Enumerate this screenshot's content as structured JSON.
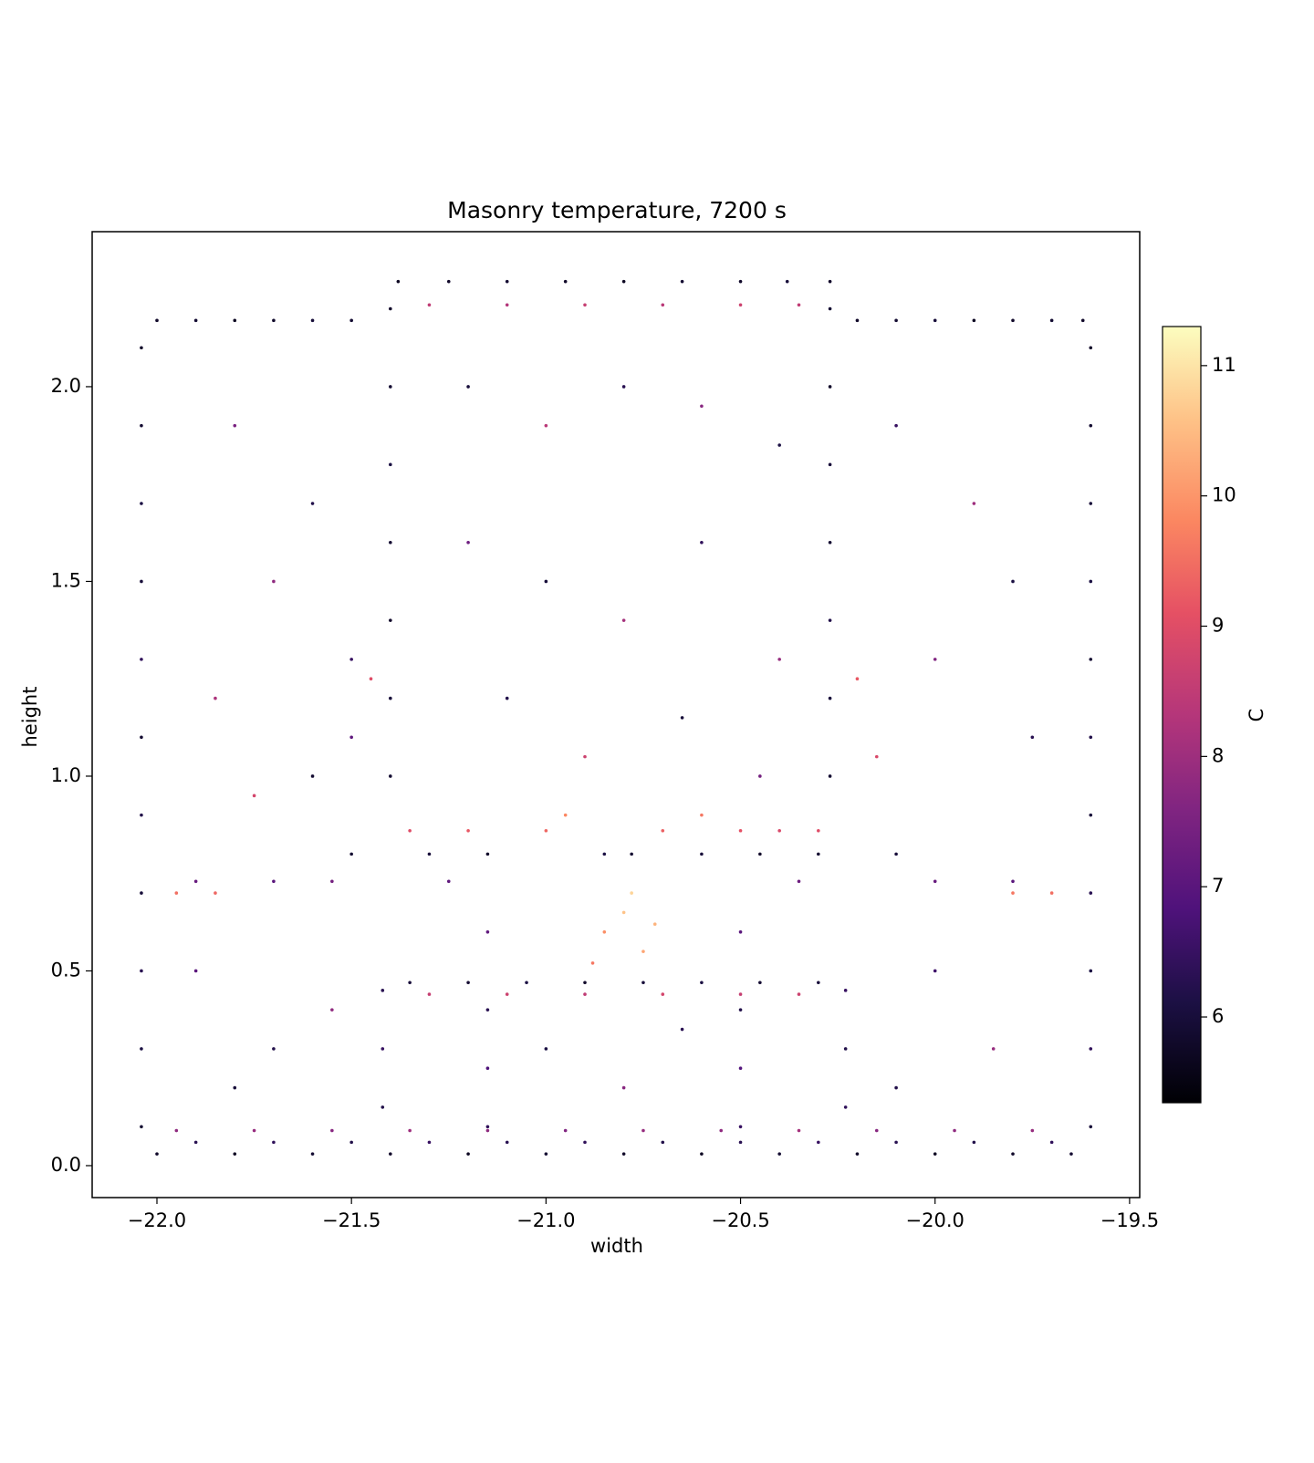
{
  "chart_data": {
    "type": "scatter",
    "title": "Masonry temperature, 7200 s",
    "x_label": "width",
    "y_label": "height",
    "colorbar_label": "C",
    "colormap": "magma",
    "xlim": [
      -22.1665,
      -19.474
    ],
    "ylim": [
      -0.082,
      2.398
    ],
    "clim": [
      5.342,
      11.3
    ],
    "xticks": [
      {
        "value": -22.0,
        "label": "−22.0"
      },
      {
        "value": -21.5,
        "label": "−21.5"
      },
      {
        "value": -21.0,
        "label": "−21.0"
      },
      {
        "value": -20.5,
        "label": "−20.5"
      },
      {
        "value": -20.0,
        "label": "−20.0"
      },
      {
        "value": -19.5,
        "label": "−19.5"
      }
    ],
    "yticks": [
      {
        "value": 0,
        "label": "0.0"
      },
      {
        "value": 0.5,
        "label": "0.5"
      },
      {
        "value": 1,
        "label": "1.0"
      },
      {
        "value": 1.5,
        "label": "1.5"
      },
      {
        "value": 2,
        "label": "2.0"
      }
    ],
    "cticks": [
      6,
      7,
      8,
      9,
      10,
      11
    ],
    "x": [
      -22.0,
      -21.9,
      -21.8,
      -21.7,
      -21.6,
      -21.5,
      -20.2,
      -20.1,
      -20.0,
      -19.9,
      -19.8,
      -19.7,
      -19.62,
      -21.38,
      -21.25,
      -21.1,
      -20.95,
      -20.8,
      -20.65,
      -20.5,
      -20.38,
      -20.27,
      -21.3,
      -21.1,
      -20.9,
      -20.7,
      -20.5,
      -20.35,
      -22.04,
      -22.04,
      -22.04,
      -22.04,
      -22.04,
      -22.04,
      -22.04,
      -22.04,
      -22.04,
      -22.04,
      -22.04,
      -19.6,
      -19.6,
      -19.6,
      -19.6,
      -19.6,
      -19.6,
      -19.6,
      -19.6,
      -19.6,
      -19.6,
      -19.6,
      -22.0,
      -21.8,
      -21.6,
      -21.4,
      -21.2,
      -21.0,
      -20.8,
      -20.6,
      -20.4,
      -20.2,
      -20.0,
      -19.8,
      -19.65,
      -21.9,
      -21.7,
      -21.5,
      -21.3,
      -21.1,
      -20.9,
      -20.7,
      -20.5,
      -20.3,
      -20.1,
      -19.9,
      -19.7,
      -21.95,
      -21.75,
      -21.55,
      -21.35,
      -21.15,
      -20.95,
      -20.75,
      -20.55,
      -20.35,
      -20.15,
      -19.95,
      -19.75,
      -21.4,
      -21.4,
      -21.4,
      -21.4,
      -21.4,
      -21.4,
      -21.4,
      -20.27,
      -20.27,
      -20.27,
      -20.27,
      -20.27,
      -20.27,
      -20.27,
      -21.42,
      -21.42,
      -21.42,
      -20.23,
      -20.23,
      -20.23,
      -21.15,
      -21.15,
      -21.15,
      -21.15,
      -20.5,
      -20.5,
      -20.5,
      -20.5,
      -21.35,
      -21.2,
      -21.05,
      -20.9,
      -20.75,
      -20.6,
      -20.45,
      -20.3,
      -21.3,
      -21.1,
      -20.9,
      -20.7,
      -20.5,
      -20.35,
      -21.5,
      -21.3,
      -21.15,
      -20.85,
      -20.78,
      -20.6,
      -20.45,
      -20.3,
      -20.1,
      -21.35,
      -21.2,
      -21.0,
      -20.7,
      -20.5,
      -20.4,
      -20.3,
      -21.9,
      -21.7,
      -21.55,
      -21.25,
      -20.35,
      -20.0,
      -19.8,
      -21.95,
      -21.85,
      -19.8,
      -19.7,
      -20.85,
      -20.8,
      -20.75,
      -20.78,
      -20.72,
      -20.88,
      -21.8,
      -21.6,
      -21.7,
      -21.5,
      -21.85,
      -21.6,
      -21.75,
      -21.5,
      -21.2,
      -21.0,
      -20.8,
      -20.6,
      -20.4,
      -21.2,
      -21.0,
      -20.8,
      -20.6,
      -20.4,
      -21.1,
      -20.9,
      -20.65,
      -20.45,
      -20.1,
      -19.9,
      -19.8,
      -20.0,
      -19.75,
      -20.15,
      -21.9,
      -21.7,
      -21.55,
      -21.8,
      -20.0,
      -19.85,
      -20.1,
      -21.0,
      -20.8,
      -20.65,
      -21.45,
      -20.2,
      -20.95,
      -20.6
    ],
    "y": [
      2.17,
      2.17,
      2.17,
      2.17,
      2.17,
      2.17,
      2.17,
      2.17,
      2.17,
      2.17,
      2.17,
      2.17,
      2.17,
      2.27,
      2.27,
      2.27,
      2.27,
      2.27,
      2.27,
      2.27,
      2.27,
      2.27,
      2.21,
      2.21,
      2.21,
      2.21,
      2.21,
      2.21,
      0.1,
      0.3,
      0.5,
      0.7,
      0.9,
      1.1,
      1.3,
      1.5,
      1.7,
      1.9,
      2.1,
      0.1,
      0.3,
      0.5,
      0.7,
      0.9,
      1.1,
      1.3,
      1.5,
      1.7,
      1.9,
      2.1,
      0.03,
      0.03,
      0.03,
      0.03,
      0.03,
      0.03,
      0.03,
      0.03,
      0.03,
      0.03,
      0.03,
      0.03,
      0.03,
      0.06,
      0.06,
      0.06,
      0.06,
      0.06,
      0.06,
      0.06,
      0.06,
      0.06,
      0.06,
      0.06,
      0.06,
      0.09,
      0.09,
      0.09,
      0.09,
      0.09,
      0.09,
      0.09,
      0.09,
      0.09,
      0.09,
      0.09,
      0.09,
      1.0,
      1.2,
      1.4,
      1.6,
      1.8,
      2.0,
      2.2,
      1.0,
      1.2,
      1.4,
      1.6,
      1.8,
      2.0,
      2.2,
      0.15,
      0.3,
      0.45,
      0.15,
      0.3,
      0.45,
      0.1,
      0.25,
      0.4,
      0.6,
      0.1,
      0.25,
      0.4,
      0.6,
      0.47,
      0.47,
      0.47,
      0.47,
      0.47,
      0.47,
      0.47,
      0.47,
      0.44,
      0.44,
      0.44,
      0.44,
      0.44,
      0.44,
      0.8,
      0.8,
      0.8,
      0.8,
      0.8,
      0.8,
      0.8,
      0.8,
      0.8,
      0.86,
      0.86,
      0.86,
      0.86,
      0.86,
      0.86,
      0.86,
      0.73,
      0.73,
      0.73,
      0.73,
      0.73,
      0.73,
      0.73,
      0.7,
      0.7,
      0.7,
      0.7,
      0.6,
      0.65,
      0.55,
      0.7,
      0.62,
      0.52,
      1.9,
      1.7,
      1.5,
      1.3,
      1.2,
      1.0,
      0.95,
      1.1,
      2.0,
      1.9,
      2.0,
      1.95,
      1.85,
      1.6,
      1.5,
      1.4,
      1.6,
      1.3,
      1.2,
      1.05,
      1.15,
      1.0,
      1.9,
      1.7,
      1.5,
      1.3,
      1.1,
      1.05,
      0.5,
      0.3,
      0.4,
      0.2,
      0.5,
      0.3,
      0.2,
      0.3,
      0.2,
      0.35,
      1.25,
      1.25,
      0.9,
      0.9
    ],
    "color_values": [
      5.8,
      5.9,
      5.7,
      5.8,
      6.0,
      5.9,
      5.8,
      5.9,
      6.0,
      5.7,
      5.8,
      5.9,
      5.8,
      5.7,
      5.8,
      5.9,
      5.8,
      5.7,
      5.9,
      5.8,
      6.0,
      5.8,
      8.5,
      8.3,
      8.6,
      8.4,
      8.7,
      8.5,
      5.9,
      6.1,
      6.3,
      6.0,
      6.2,
      5.9,
      6.4,
      6.0,
      6.1,
      5.9,
      5.8,
      6.0,
      6.4,
      6.1,
      6.3,
      6.0,
      6.2,
      5.9,
      6.1,
      6.0,
      5.9,
      5.8,
      5.8,
      5.7,
      5.9,
      5.8,
      5.7,
      5.9,
      5.8,
      5.7,
      5.9,
      5.8,
      5.7,
      5.8,
      5.9,
      6.3,
      6.4,
      6.2,
      6.5,
      6.3,
      6.4,
      6.2,
      6.3,
      6.5,
      6.3,
      6.2,
      6.4,
      7.8,
      7.9,
      7.7,
      8.0,
      7.8,
      7.6,
      7.9,
      7.8,
      8.1,
      7.7,
      7.8,
      7.9,
      5.9,
      6.0,
      5.8,
      5.9,
      6.1,
      5.9,
      5.8,
      5.9,
      6.0,
      6.2,
      5.9,
      6.0,
      5.8,
      5.9,
      6.2,
      6.5,
      6.3,
      6.4,
      6.2,
      6.5,
      6.4,
      6.8,
      6.3,
      7.1,
      6.5,
      6.9,
      6.2,
      7.0,
      6.0,
      5.9,
      6.1,
      5.8,
      6.0,
      6.1,
      5.9,
      6.0,
      8.6,
      8.7,
      8.5,
      8.8,
      8.6,
      8.7,
      5.9,
      6.0,
      5.8,
      6.1,
      5.9,
      6.0,
      5.8,
      5.9,
      6.0,
      9.0,
      9.2,
      9.4,
      9.3,
      9.1,
      8.9,
      9.0,
      7.2,
      7.0,
      7.4,
      7.1,
      7.3,
      7.2,
      7.0,
      9.5,
      9.4,
      9.6,
      9.5,
      9.9,
      10.6,
      10.2,
      10.8,
      10.4,
      9.6,
      7.5,
      6.2,
      7.8,
      6.5,
      8.2,
      5.9,
      8.8,
      7.1,
      6.0,
      8.4,
      6.3,
      7.7,
      6.1,
      7.3,
      6.0,
      8.1,
      6.4,
      7.9,
      6.2,
      8.7,
      6.0,
      7.4,
      6.5,
      8.0,
      6.1,
      7.6,
      6.3,
      8.9,
      7.0,
      6.2,
      7.8,
      6.0,
      6.6,
      7.9,
      6.2,
      6.1,
      7.7,
      6.3,
      9.0,
      9.2,
      9.8,
      9.6
    ]
  }
}
